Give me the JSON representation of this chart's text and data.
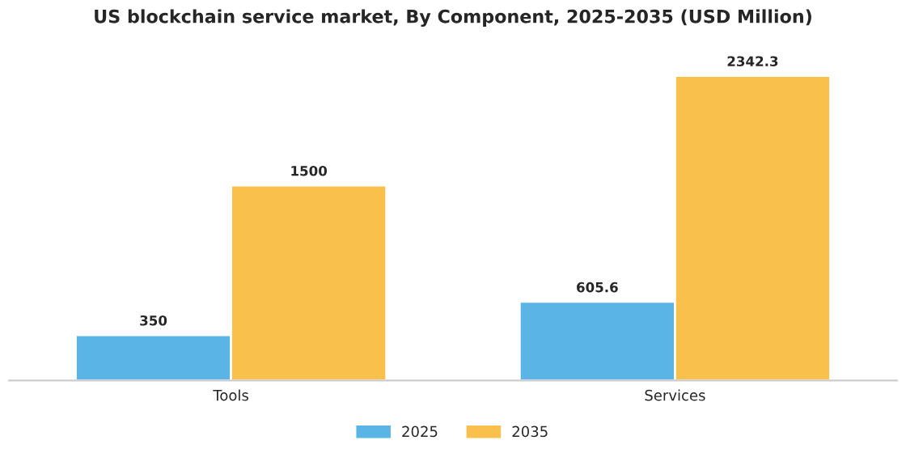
{
  "chart_data": {
    "type": "bar",
    "title": "US blockchain service market, By Component, 2025-2035 (USD Million)",
    "categories": [
      "Tools",
      "Services"
    ],
    "series": [
      {
        "name": "2025",
        "color": "#5ab4e5",
        "values": [
          350,
          605.6
        ]
      },
      {
        "name": "2035",
        "color": "#f9c04c",
        "values": [
          1500,
          2342.3
        ]
      }
    ],
    "data_labels": true,
    "legend": "bottom",
    "grid": false
  }
}
